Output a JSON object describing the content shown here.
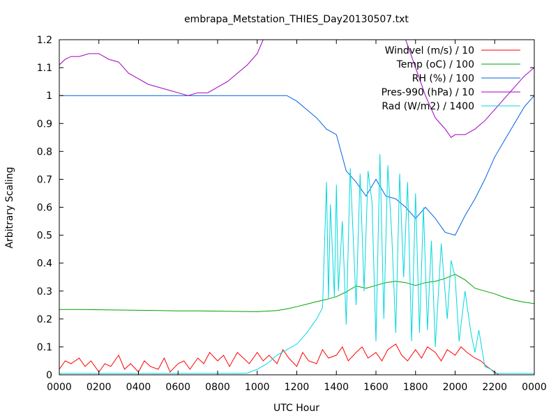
{
  "chart_data": {
    "type": "line",
    "title": "embrapa_Metstation_THIES_Day20130507.txt",
    "xlabel": "UTC Hour",
    "ylabel": "Arbitrary Scaling",
    "xlim": [
      0,
      24
    ],
    "ylim": [
      0,
      1.2
    ],
    "grid": false,
    "legend_position": "top-right",
    "x_ticks": [
      {
        "value": 0,
        "label": "0000"
      },
      {
        "value": 2,
        "label": "0200"
      },
      {
        "value": 4,
        "label": "0400"
      },
      {
        "value": 6,
        "label": "0600"
      },
      {
        "value": 8,
        "label": "0800"
      },
      {
        "value": 10,
        "label": "1000"
      },
      {
        "value": 12,
        "label": "1200"
      },
      {
        "value": 14,
        "label": "1400"
      },
      {
        "value": 16,
        "label": "1600"
      },
      {
        "value": 18,
        "label": "1800"
      },
      {
        "value": 20,
        "label": "2000"
      },
      {
        "value": 22,
        "label": "2200"
      },
      {
        "value": 24,
        "label": "0000"
      }
    ],
    "y_ticks": [
      {
        "value": 0,
        "label": "0"
      },
      {
        "value": 0.1,
        "label": "0.1"
      },
      {
        "value": 0.2,
        "label": "0.2"
      },
      {
        "value": 0.3,
        "label": "0.3"
      },
      {
        "value": 0.4,
        "label": "0.4"
      },
      {
        "value": 0.5,
        "label": "0.5"
      },
      {
        "value": 0.6,
        "label": "0.6"
      },
      {
        "value": 0.7,
        "label": "0.7"
      },
      {
        "value": 0.8,
        "label": "0.8"
      },
      {
        "value": 0.9,
        "label": "0.9"
      },
      {
        "value": 1,
        "label": "1"
      },
      {
        "value": 1.1,
        "label": "1.1"
      },
      {
        "value": 1.2,
        "label": "1.2"
      }
    ],
    "series": [
      {
        "name": "Windvel (m/s) / 10",
        "color": "#ff0000",
        "x": [
          0,
          0.3,
          0.6,
          1,
          1.3,
          1.6,
          2,
          2.3,
          2.6,
          3,
          3.3,
          3.6,
          4,
          4.3,
          4.6,
          5,
          5.3,
          5.6,
          6,
          6.3,
          6.6,
          7,
          7.3,
          7.6,
          8,
          8.3,
          8.6,
          9,
          9.3,
          9.6,
          10,
          10.3,
          10.6,
          11,
          11.3,
          11.6,
          12,
          12.3,
          12.6,
          13,
          13.3,
          13.6,
          14,
          14.3,
          14.6,
          15,
          15.3,
          15.6,
          16,
          16.3,
          16.6,
          17,
          17.3,
          17.6,
          18,
          18.3,
          18.6,
          19,
          19.3,
          19.6,
          20,
          20.3,
          20.6,
          21,
          21.3,
          21.6,
          22,
          22.2,
          22.5,
          23,
          23.5,
          24
        ],
        "y": [
          0.02,
          0.05,
          0.04,
          0.06,
          0.03,
          0.05,
          0.01,
          0.04,
          0.03,
          0.07,
          0.02,
          0.04,
          0.01,
          0.05,
          0.03,
          0.02,
          0.06,
          0.01,
          0.04,
          0.05,
          0.02,
          0.06,
          0.04,
          0.08,
          0.05,
          0.07,
          0.03,
          0.08,
          0.06,
          0.04,
          0.08,
          0.05,
          0.07,
          0.04,
          0.09,
          0.06,
          0.03,
          0.08,
          0.05,
          0.04,
          0.09,
          0.06,
          0.07,
          0.1,
          0.05,
          0.08,
          0.1,
          0.06,
          0.08,
          0.05,
          0.09,
          0.11,
          0.07,
          0.05,
          0.09,
          0.06,
          0.1,
          0.08,
          0.05,
          0.09,
          0.07,
          0.1,
          0.08,
          0.06,
          0.05,
          0.03,
          0.01,
          0.0,
          0.0,
          0.0,
          0.0,
          0.0
        ]
      },
      {
        "name": "Temp (oC) / 100",
        "color": "#00a000",
        "x": [
          0,
          1,
          2,
          3,
          4,
          5,
          6,
          7,
          8,
          9,
          10,
          11,
          11.5,
          12,
          12.5,
          13,
          13.5,
          14,
          14.5,
          15,
          15.5,
          16,
          16.5,
          17,
          17.5,
          18,
          18.5,
          19,
          19.5,
          20,
          20.5,
          21,
          21.5,
          22,
          22.5,
          23,
          23.5,
          24
        ],
        "y": [
          0.234,
          0.234,
          0.233,
          0.232,
          0.231,
          0.23,
          0.229,
          0.229,
          0.228,
          0.227,
          0.226,
          0.23,
          0.236,
          0.244,
          0.253,
          0.262,
          0.27,
          0.28,
          0.297,
          0.318,
          0.31,
          0.32,
          0.33,
          0.335,
          0.33,
          0.32,
          0.33,
          0.335,
          0.345,
          0.36,
          0.34,
          0.31,
          0.3,
          0.29,
          0.277,
          0.267,
          0.26,
          0.255
        ]
      },
      {
        "name": "RH (%) / 100",
        "color": "#0060e0",
        "x": [
          0,
          2,
          4,
          6,
          8,
          10,
          11,
          11.5,
          12,
          12.5,
          13,
          13.5,
          14,
          14.5,
          15,
          15.5,
          16,
          16.5,
          17,
          17.5,
          18,
          18.5,
          19,
          19.5,
          20,
          20.5,
          21,
          21.5,
          22,
          22.5,
          23,
          23.5,
          24
        ],
        "y": [
          1.0,
          1.0,
          1.0,
          1.0,
          1.0,
          1.0,
          1.0,
          1.0,
          0.98,
          0.95,
          0.92,
          0.88,
          0.86,
          0.73,
          0.69,
          0.64,
          0.7,
          0.64,
          0.63,
          0.6,
          0.56,
          0.6,
          0.56,
          0.51,
          0.5,
          0.57,
          0.63,
          0.7,
          0.78,
          0.84,
          0.9,
          0.96,
          1.0
        ]
      },
      {
        "name": "Pres-990 (hPa) / 10",
        "color": "#a000c0",
        "x": [
          0,
          0.3,
          0.6,
          1,
          1.5,
          2,
          2.5,
          3,
          3.5,
          4,
          4.5,
          5,
          5.5,
          6,
          6.5,
          7,
          7.5,
          8,
          8.5,
          9,
          9.5,
          10,
          10.3,
          17.5,
          18,
          18.5,
          19,
          19.5,
          19.8,
          20,
          20.5,
          21,
          21.5,
          22,
          22.5,
          23,
          23.5,
          24
        ],
        "y": [
          1.11,
          1.13,
          1.14,
          1.14,
          1.15,
          1.15,
          1.13,
          1.12,
          1.08,
          1.06,
          1.04,
          1.03,
          1.02,
          1.01,
          1.0,
          1.01,
          1.01,
          1.03,
          1.05,
          1.08,
          1.11,
          1.15,
          1.2,
          1.2,
          1.1,
          1.0,
          0.92,
          0.88,
          0.85,
          0.86,
          0.86,
          0.88,
          0.91,
          0.95,
          0.99,
          1.03,
          1.07,
          1.1
        ]
      },
      {
        "name": "Rad (W/m2) / 1400",
        "color": "#00d8e0",
        "x": [
          0,
          2,
          4,
          6,
          8,
          9,
          9.5,
          10,
          10.5,
          11,
          11.5,
          12,
          12.5,
          13,
          13.3,
          13.5,
          13.6,
          13.7,
          13.9,
          14,
          14.1,
          14.3,
          14.5,
          14.7,
          15,
          15.2,
          15.4,
          15.6,
          15.8,
          16,
          16.2,
          16.4,
          16.6,
          16.8,
          17,
          17.2,
          17.4,
          17.6,
          17.8,
          18,
          18.2,
          18.4,
          18.6,
          18.8,
          19,
          19.3,
          19.6,
          19.8,
          20,
          20.2,
          20.5,
          20.8,
          21,
          21.2,
          21.5,
          21.8,
          22,
          22.2,
          22.5,
          23,
          24
        ],
        "y": [
          0.005,
          0.005,
          0.005,
          0.005,
          0.005,
          0.005,
          0.006,
          0.02,
          0.04,
          0.07,
          0.09,
          0.11,
          0.15,
          0.2,
          0.24,
          0.69,
          0.27,
          0.61,
          0.28,
          0.68,
          0.3,
          0.55,
          0.18,
          0.74,
          0.25,
          0.72,
          0.3,
          0.73,
          0.62,
          0.12,
          0.79,
          0.2,
          0.75,
          0.5,
          0.15,
          0.72,
          0.35,
          0.69,
          0.12,
          0.65,
          0.15,
          0.6,
          0.16,
          0.48,
          0.1,
          0.47,
          0.2,
          0.41,
          0.35,
          0.12,
          0.3,
          0.15,
          0.08,
          0.16,
          0.03,
          0.02,
          0.005,
          0.005,
          0.005,
          0.005,
          0.005
        ]
      }
    ]
  }
}
